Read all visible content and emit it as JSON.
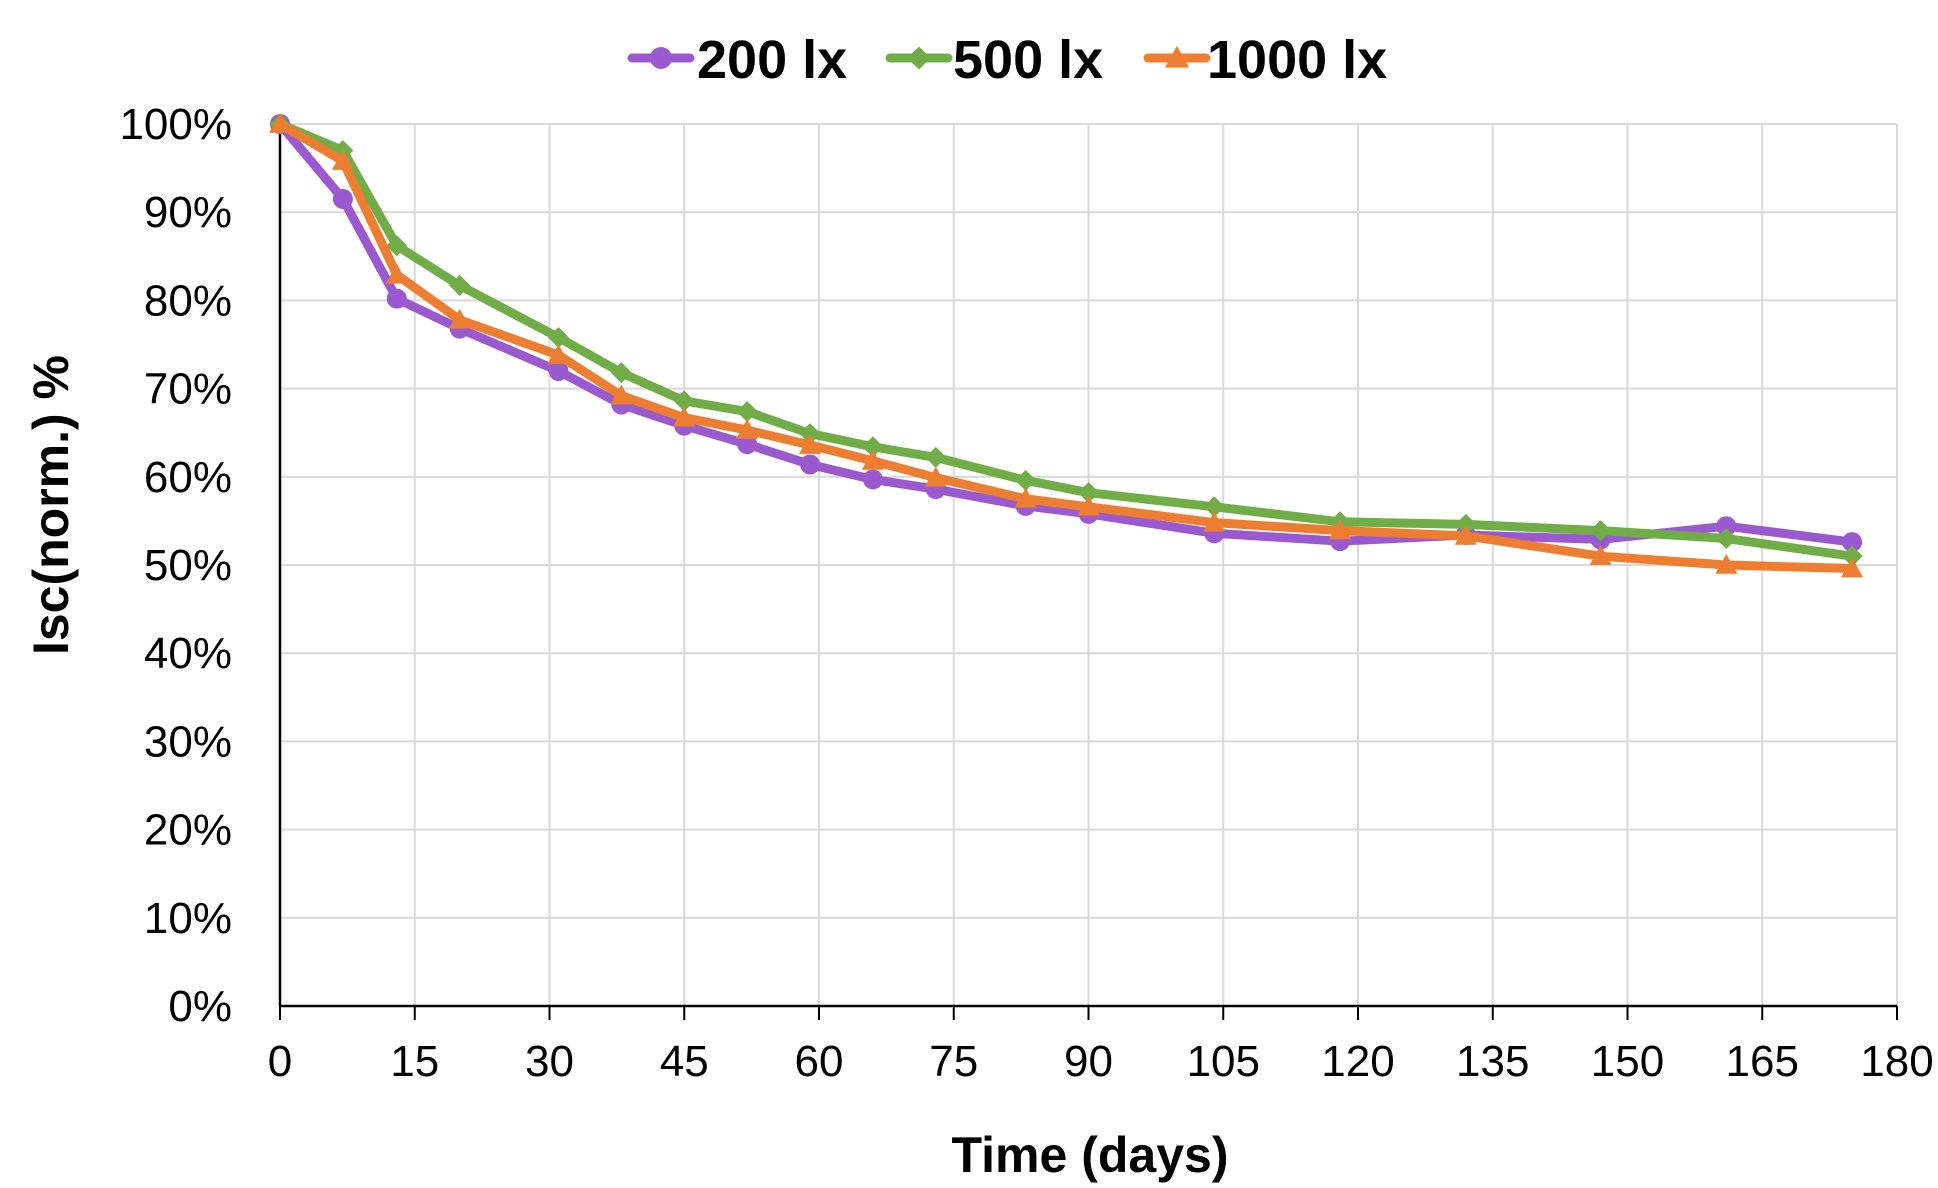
{
  "chart_data": {
    "type": "line",
    "title": "",
    "xlabel": "Time (days)",
    "ylabel": "Isc(norm.) %",
    "xlim": [
      0,
      180
    ],
    "ylim": [
      0,
      100
    ],
    "x_ticks": [
      "0",
      "15",
      "30",
      "45",
      "60",
      "75",
      "90",
      "105",
      "120",
      "135",
      "150",
      "165",
      "180"
    ],
    "y_ticks": [
      "0%",
      "10%",
      "20%",
      "30%",
      "40%",
      "50%",
      "60%",
      "70%",
      "80%",
      "90%",
      "100%"
    ],
    "grid": true,
    "legend_position": "top-center",
    "series": [
      {
        "name": "200 lx",
        "color": "#9B59D0",
        "marker": "circle",
        "x": [
          0,
          7,
          13,
          20,
          31,
          38,
          45,
          52,
          59,
          66,
          73,
          83,
          90,
          104,
          118,
          132,
          147,
          161,
          175
        ],
        "y": [
          100,
          91.5,
          80.2,
          76.8,
          72.0,
          68.2,
          65.8,
          63.7,
          61.4,
          59.7,
          58.6,
          56.7,
          55.8,
          53.6,
          52.7,
          53.4,
          52.9,
          54.4,
          52.6
        ]
      },
      {
        "name": "500 lx",
        "color": "#70AD47",
        "marker": "diamond",
        "x": [
          0,
          7,
          13,
          20,
          31,
          38,
          45,
          52,
          59,
          66,
          73,
          83,
          90,
          104,
          118,
          132,
          147,
          161,
          175
        ],
        "y": [
          100,
          97.0,
          86.2,
          81.7,
          75.8,
          71.8,
          68.6,
          67.4,
          64.9,
          63.4,
          62.2,
          59.6,
          58.2,
          56.6,
          54.9,
          54.6,
          53.9,
          53.0,
          51.0
        ]
      },
      {
        "name": "1000 lx",
        "color": "#ED7D31",
        "marker": "triangle",
        "x": [
          0,
          7,
          13,
          20,
          31,
          38,
          45,
          52,
          59,
          66,
          73,
          83,
          90,
          104,
          118,
          132,
          147,
          161,
          175
        ],
        "y": [
          100,
          95.8,
          82.9,
          77.8,
          73.8,
          69.2,
          66.7,
          65.3,
          63.6,
          61.8,
          59.9,
          57.5,
          56.6,
          54.8,
          53.9,
          53.3,
          51.0,
          50.0,
          49.6
        ]
      }
    ]
  }
}
